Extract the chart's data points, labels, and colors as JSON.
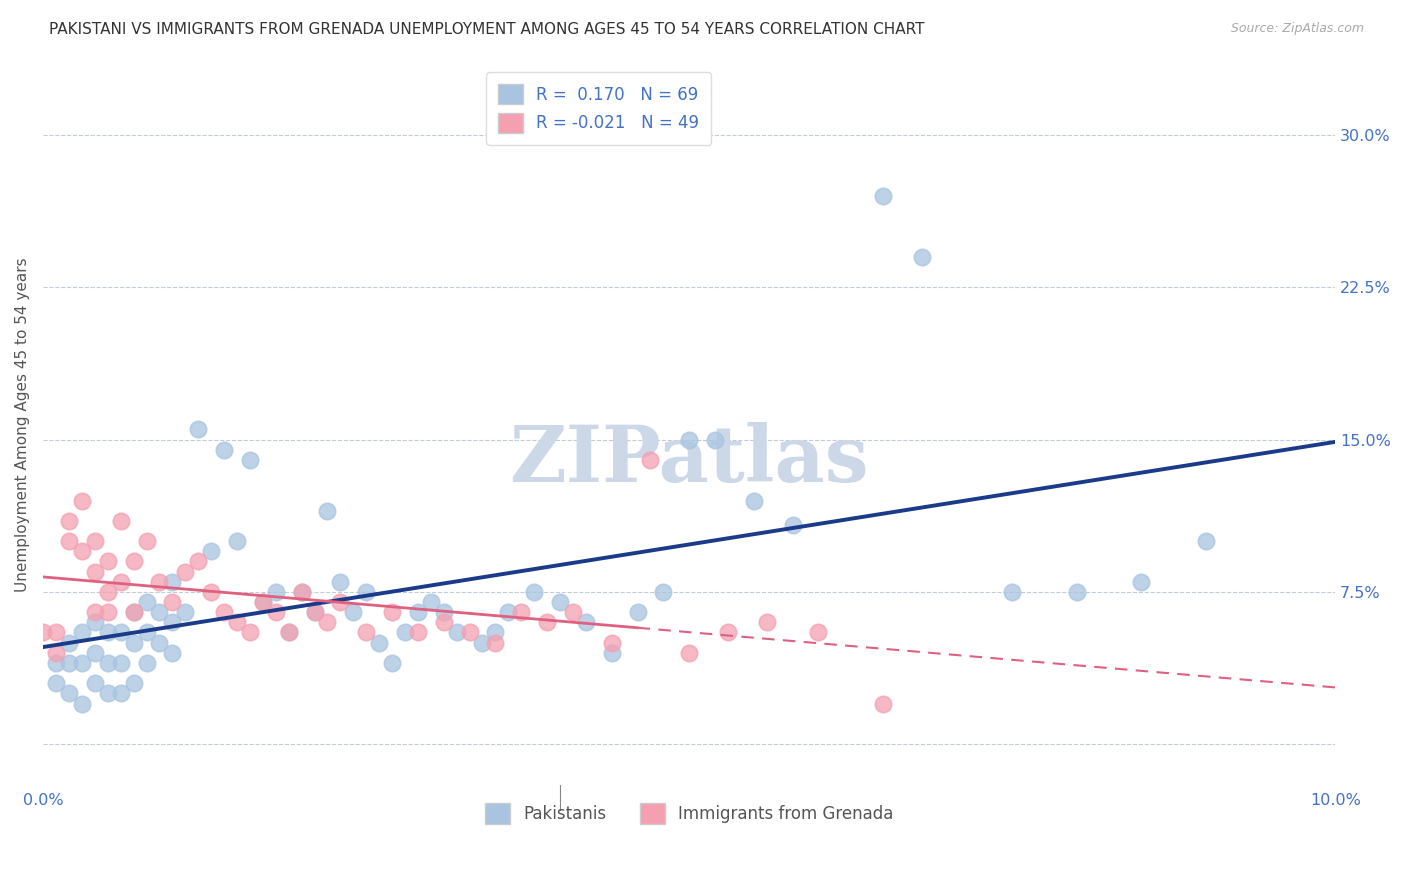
{
  "title": "PAKISTANI VS IMMIGRANTS FROM GRENADA UNEMPLOYMENT AMONG AGES 45 TO 54 YEARS CORRELATION CHART",
  "source": "Source: ZipAtlas.com",
  "ylabel": "Unemployment Among Ages 45 to 54 years",
  "xlim": [
    0.0,
    0.1
  ],
  "ylim": [
    -0.02,
    0.335
  ],
  "xticks": [
    0.0,
    0.02,
    0.04,
    0.06,
    0.08,
    0.1
  ],
  "xtick_labels": [
    "0.0%",
    "",
    "",
    "",
    "",
    "10.0%"
  ],
  "yticks": [
    0.0,
    0.075,
    0.15,
    0.225,
    0.3
  ],
  "ytick_labels_right": [
    "",
    "7.5%",
    "15.0%",
    "22.5%",
    "30.0%"
  ],
  "pakistani_R": 0.17,
  "pakistani_N": 69,
  "grenada_R": -0.021,
  "grenada_N": 49,
  "blue_color": "#a8c4e0",
  "pink_color": "#f4a0b0",
  "blue_line_color": "#1a3a8a",
  "pink_line_color": "#e06080",
  "watermark": "ZIPatlas",
  "watermark_color": "#ccd8e8",
  "title_fontsize": 11,
  "axis_label_fontsize": 11,
  "tick_fontsize": 11.5,
  "pakistani_x": [
    0.001,
    0.001,
    0.002,
    0.002,
    0.002,
    0.003,
    0.003,
    0.003,
    0.004,
    0.004,
    0.004,
    0.005,
    0.005,
    0.005,
    0.006,
    0.006,
    0.006,
    0.007,
    0.007,
    0.007,
    0.008,
    0.008,
    0.008,
    0.009,
    0.009,
    0.01,
    0.01,
    0.01,
    0.011,
    0.012,
    0.013,
    0.014,
    0.015,
    0.016,
    0.017,
    0.018,
    0.019,
    0.02,
    0.021,
    0.022,
    0.023,
    0.024,
    0.025,
    0.026,
    0.027,
    0.028,
    0.029,
    0.03,
    0.031,
    0.032,
    0.034,
    0.035,
    0.036,
    0.038,
    0.04,
    0.042,
    0.044,
    0.046,
    0.048,
    0.05,
    0.052,
    0.055,
    0.058,
    0.065,
    0.068,
    0.075,
    0.08,
    0.085,
    0.09
  ],
  "pakistani_y": [
    0.04,
    0.03,
    0.05,
    0.04,
    0.025,
    0.055,
    0.04,
    0.02,
    0.06,
    0.045,
    0.03,
    0.055,
    0.04,
    0.025,
    0.055,
    0.04,
    0.025,
    0.065,
    0.05,
    0.03,
    0.07,
    0.055,
    0.04,
    0.065,
    0.05,
    0.08,
    0.06,
    0.045,
    0.065,
    0.155,
    0.095,
    0.145,
    0.1,
    0.14,
    0.07,
    0.075,
    0.055,
    0.075,
    0.065,
    0.115,
    0.08,
    0.065,
    0.075,
    0.05,
    0.04,
    0.055,
    0.065,
    0.07,
    0.065,
    0.055,
    0.05,
    0.055,
    0.065,
    0.075,
    0.07,
    0.06,
    0.045,
    0.065,
    0.075,
    0.15,
    0.15,
    0.12,
    0.108,
    0.27,
    0.24,
    0.075,
    0.075,
    0.08,
    0.1
  ],
  "grenada_x": [
    0.0,
    0.001,
    0.001,
    0.002,
    0.002,
    0.003,
    0.003,
    0.004,
    0.004,
    0.004,
    0.005,
    0.005,
    0.005,
    0.006,
    0.006,
    0.007,
    0.007,
    0.008,
    0.009,
    0.01,
    0.011,
    0.012,
    0.013,
    0.014,
    0.015,
    0.016,
    0.017,
    0.018,
    0.019,
    0.02,
    0.021,
    0.022,
    0.023,
    0.025,
    0.027,
    0.029,
    0.031,
    0.033,
    0.035,
    0.037,
    0.039,
    0.041,
    0.044,
    0.047,
    0.05,
    0.053,
    0.056,
    0.06,
    0.065
  ],
  "grenada_y": [
    0.055,
    0.055,
    0.045,
    0.1,
    0.11,
    0.095,
    0.12,
    0.085,
    0.1,
    0.065,
    0.075,
    0.09,
    0.065,
    0.08,
    0.11,
    0.09,
    0.065,
    0.1,
    0.08,
    0.07,
    0.085,
    0.09,
    0.075,
    0.065,
    0.06,
    0.055,
    0.07,
    0.065,
    0.055,
    0.075,
    0.065,
    0.06,
    0.07,
    0.055,
    0.065,
    0.055,
    0.06,
    0.055,
    0.05,
    0.065,
    0.06,
    0.065,
    0.05,
    0.14,
    0.045,
    0.055,
    0.06,
    0.055,
    0.02
  ]
}
